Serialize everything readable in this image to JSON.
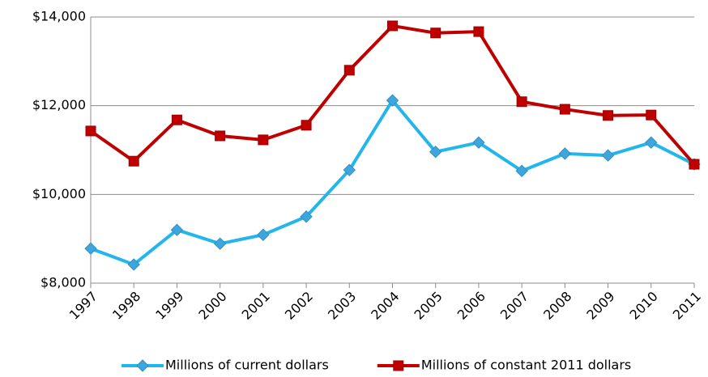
{
  "chart_data": {
    "type": "line",
    "categories": [
      "1997",
      "1998",
      "1999",
      "2000",
      "2001",
      "2002",
      "2003",
      "2004",
      "2005",
      "2006",
      "2007",
      "2008",
      "2009",
      "2010",
      "2011"
    ],
    "series": [
      {
        "name": "Millions of current dollars",
        "color": "#22b6ea",
        "marker": "diamond",
        "values": [
          8780,
          8420,
          9200,
          8890,
          9090,
          9500,
          10550,
          12120,
          10960,
          11170,
          10530,
          10920,
          10880,
          11170,
          10680
        ]
      },
      {
        "name": "Millions of constant 2011 dollars",
        "color": "#c00000",
        "marker": "square",
        "values": [
          11430,
          10750,
          11680,
          11320,
          11230,
          11560,
          12800,
          13800,
          13640,
          13670,
          12090,
          11920,
          11780,
          11790,
          10680
        ]
      }
    ],
    "ylim": [
      8000,
      14000
    ],
    "yticks": [
      {
        "value": 8000,
        "label": "$8,000"
      },
      {
        "value": 10000,
        "label": "$10,000"
      },
      {
        "value": 12000,
        "label": "$12,000"
      },
      {
        "value": 14000,
        "label": "$14,000"
      }
    ],
    "grid": true,
    "legend": "bottom"
  }
}
